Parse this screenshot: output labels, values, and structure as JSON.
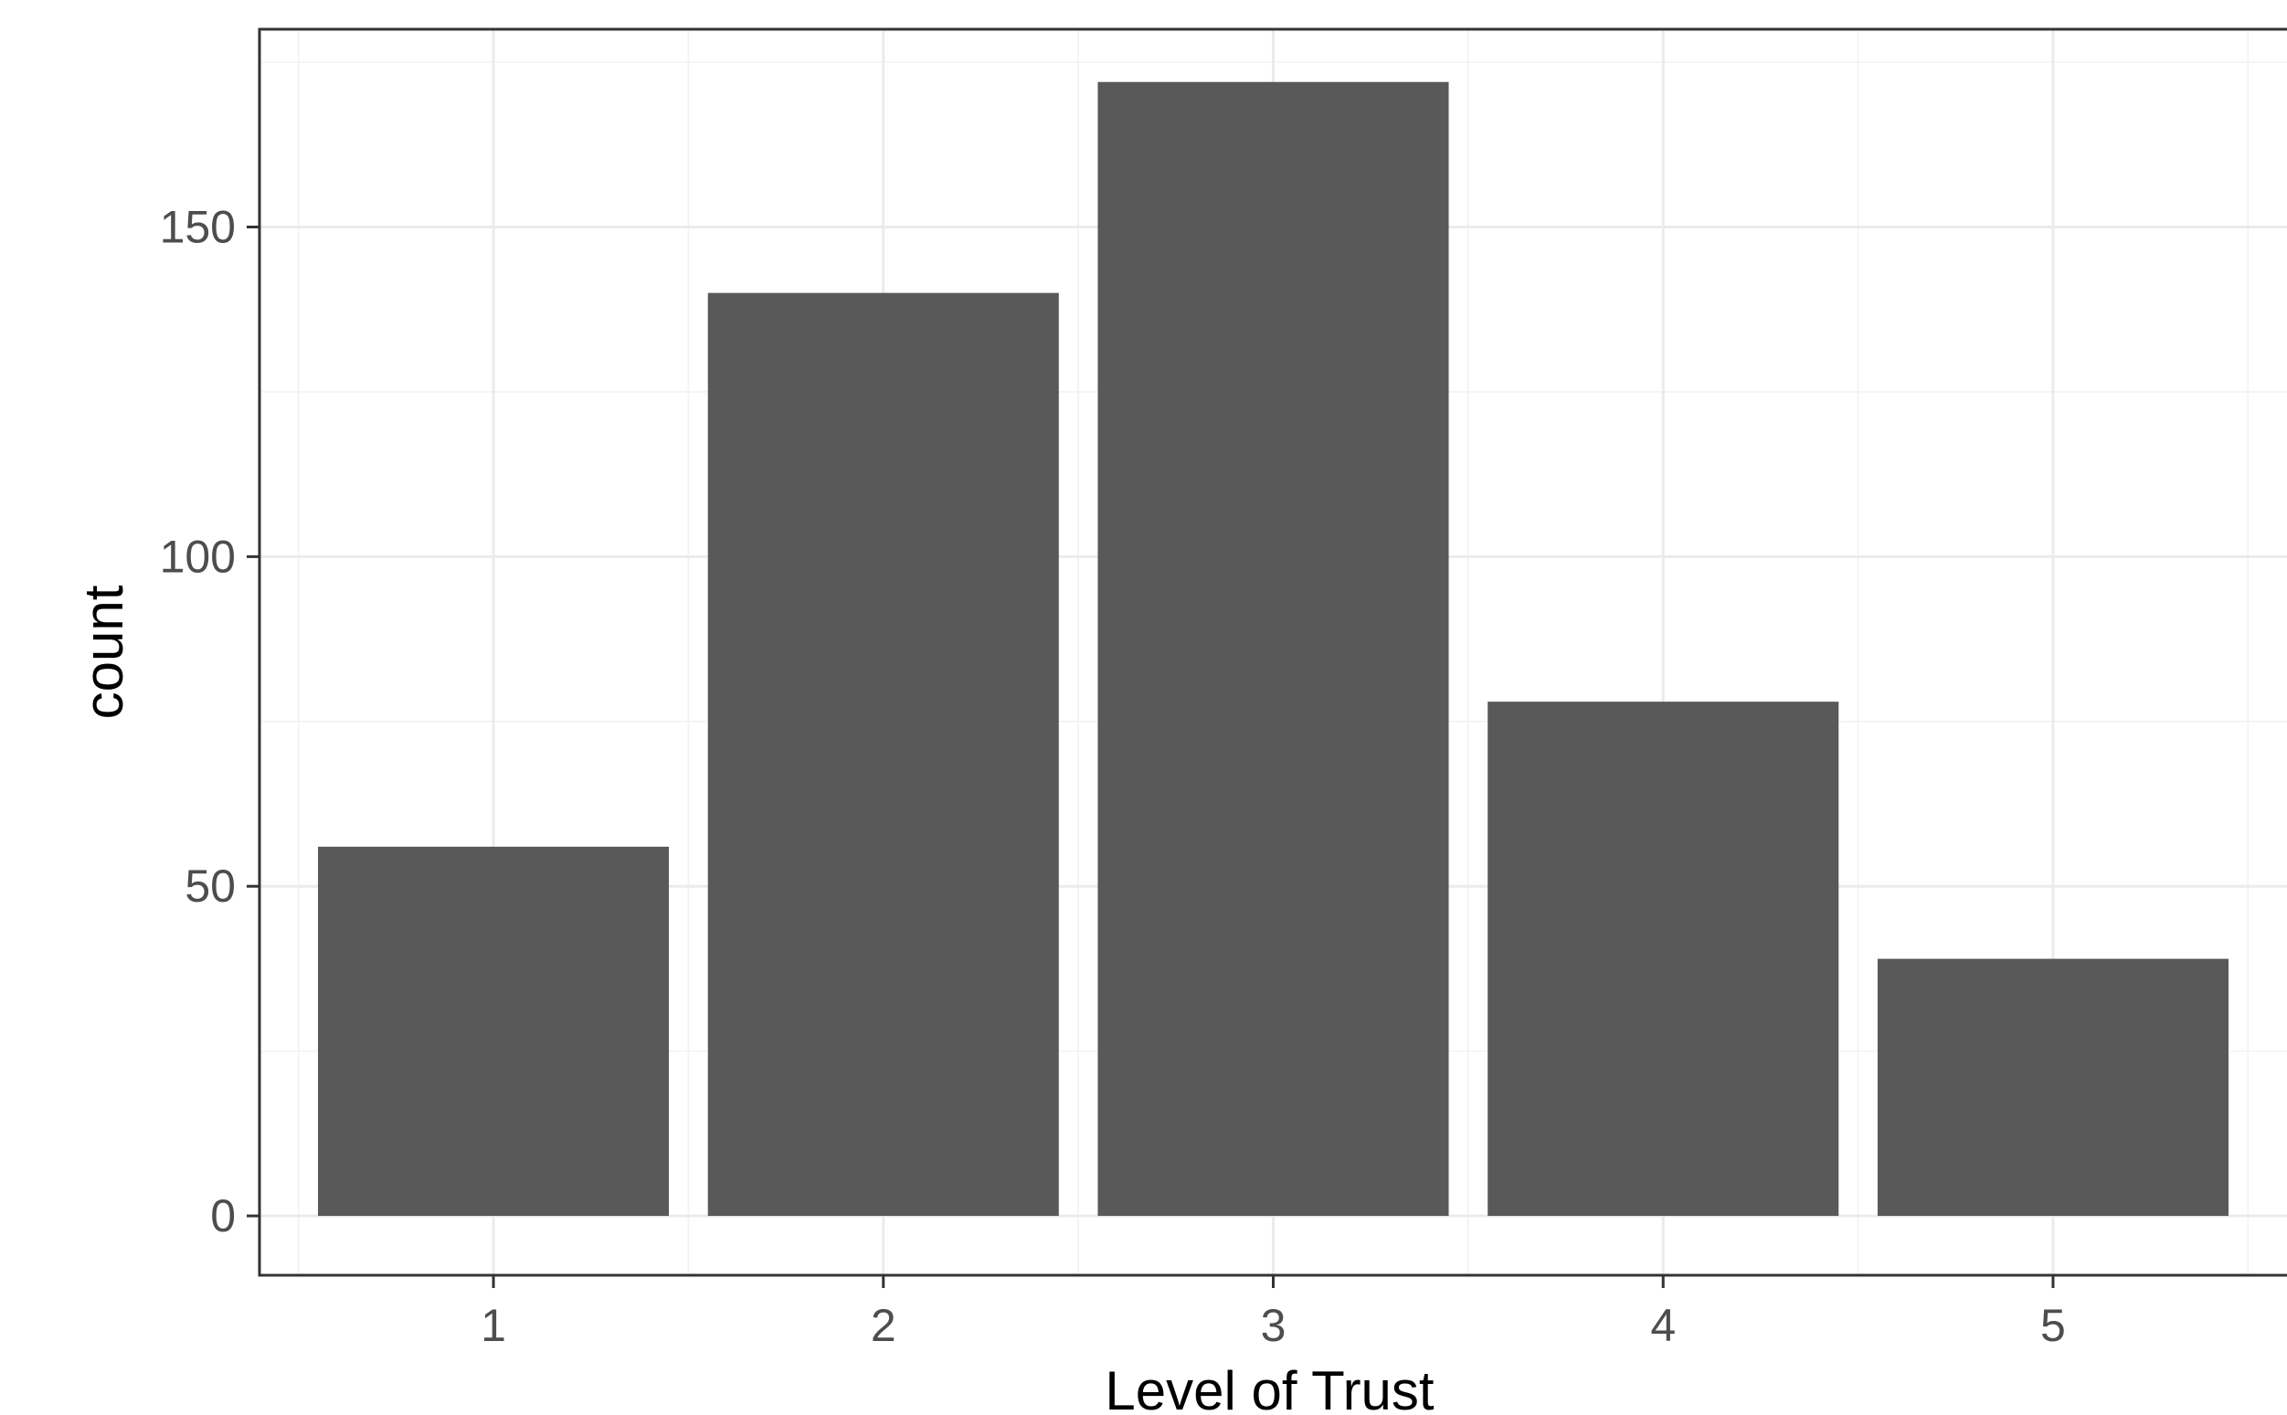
{
  "chart_data": {
    "type": "bar",
    "categories": [
      "1",
      "2",
      "3",
      "4",
      "5"
    ],
    "values": [
      56,
      140,
      172,
      78,
      39
    ],
    "title": "",
    "xlabel": "Level of Trust",
    "ylabel": "count",
    "ylim": [
      -9,
      180
    ],
    "yticks": [
      "0",
      "50",
      "100",
      "150"
    ],
    "grid": true,
    "bar_color": "#595959",
    "panel_border_color": "#333333",
    "background": "#ffffff"
  }
}
